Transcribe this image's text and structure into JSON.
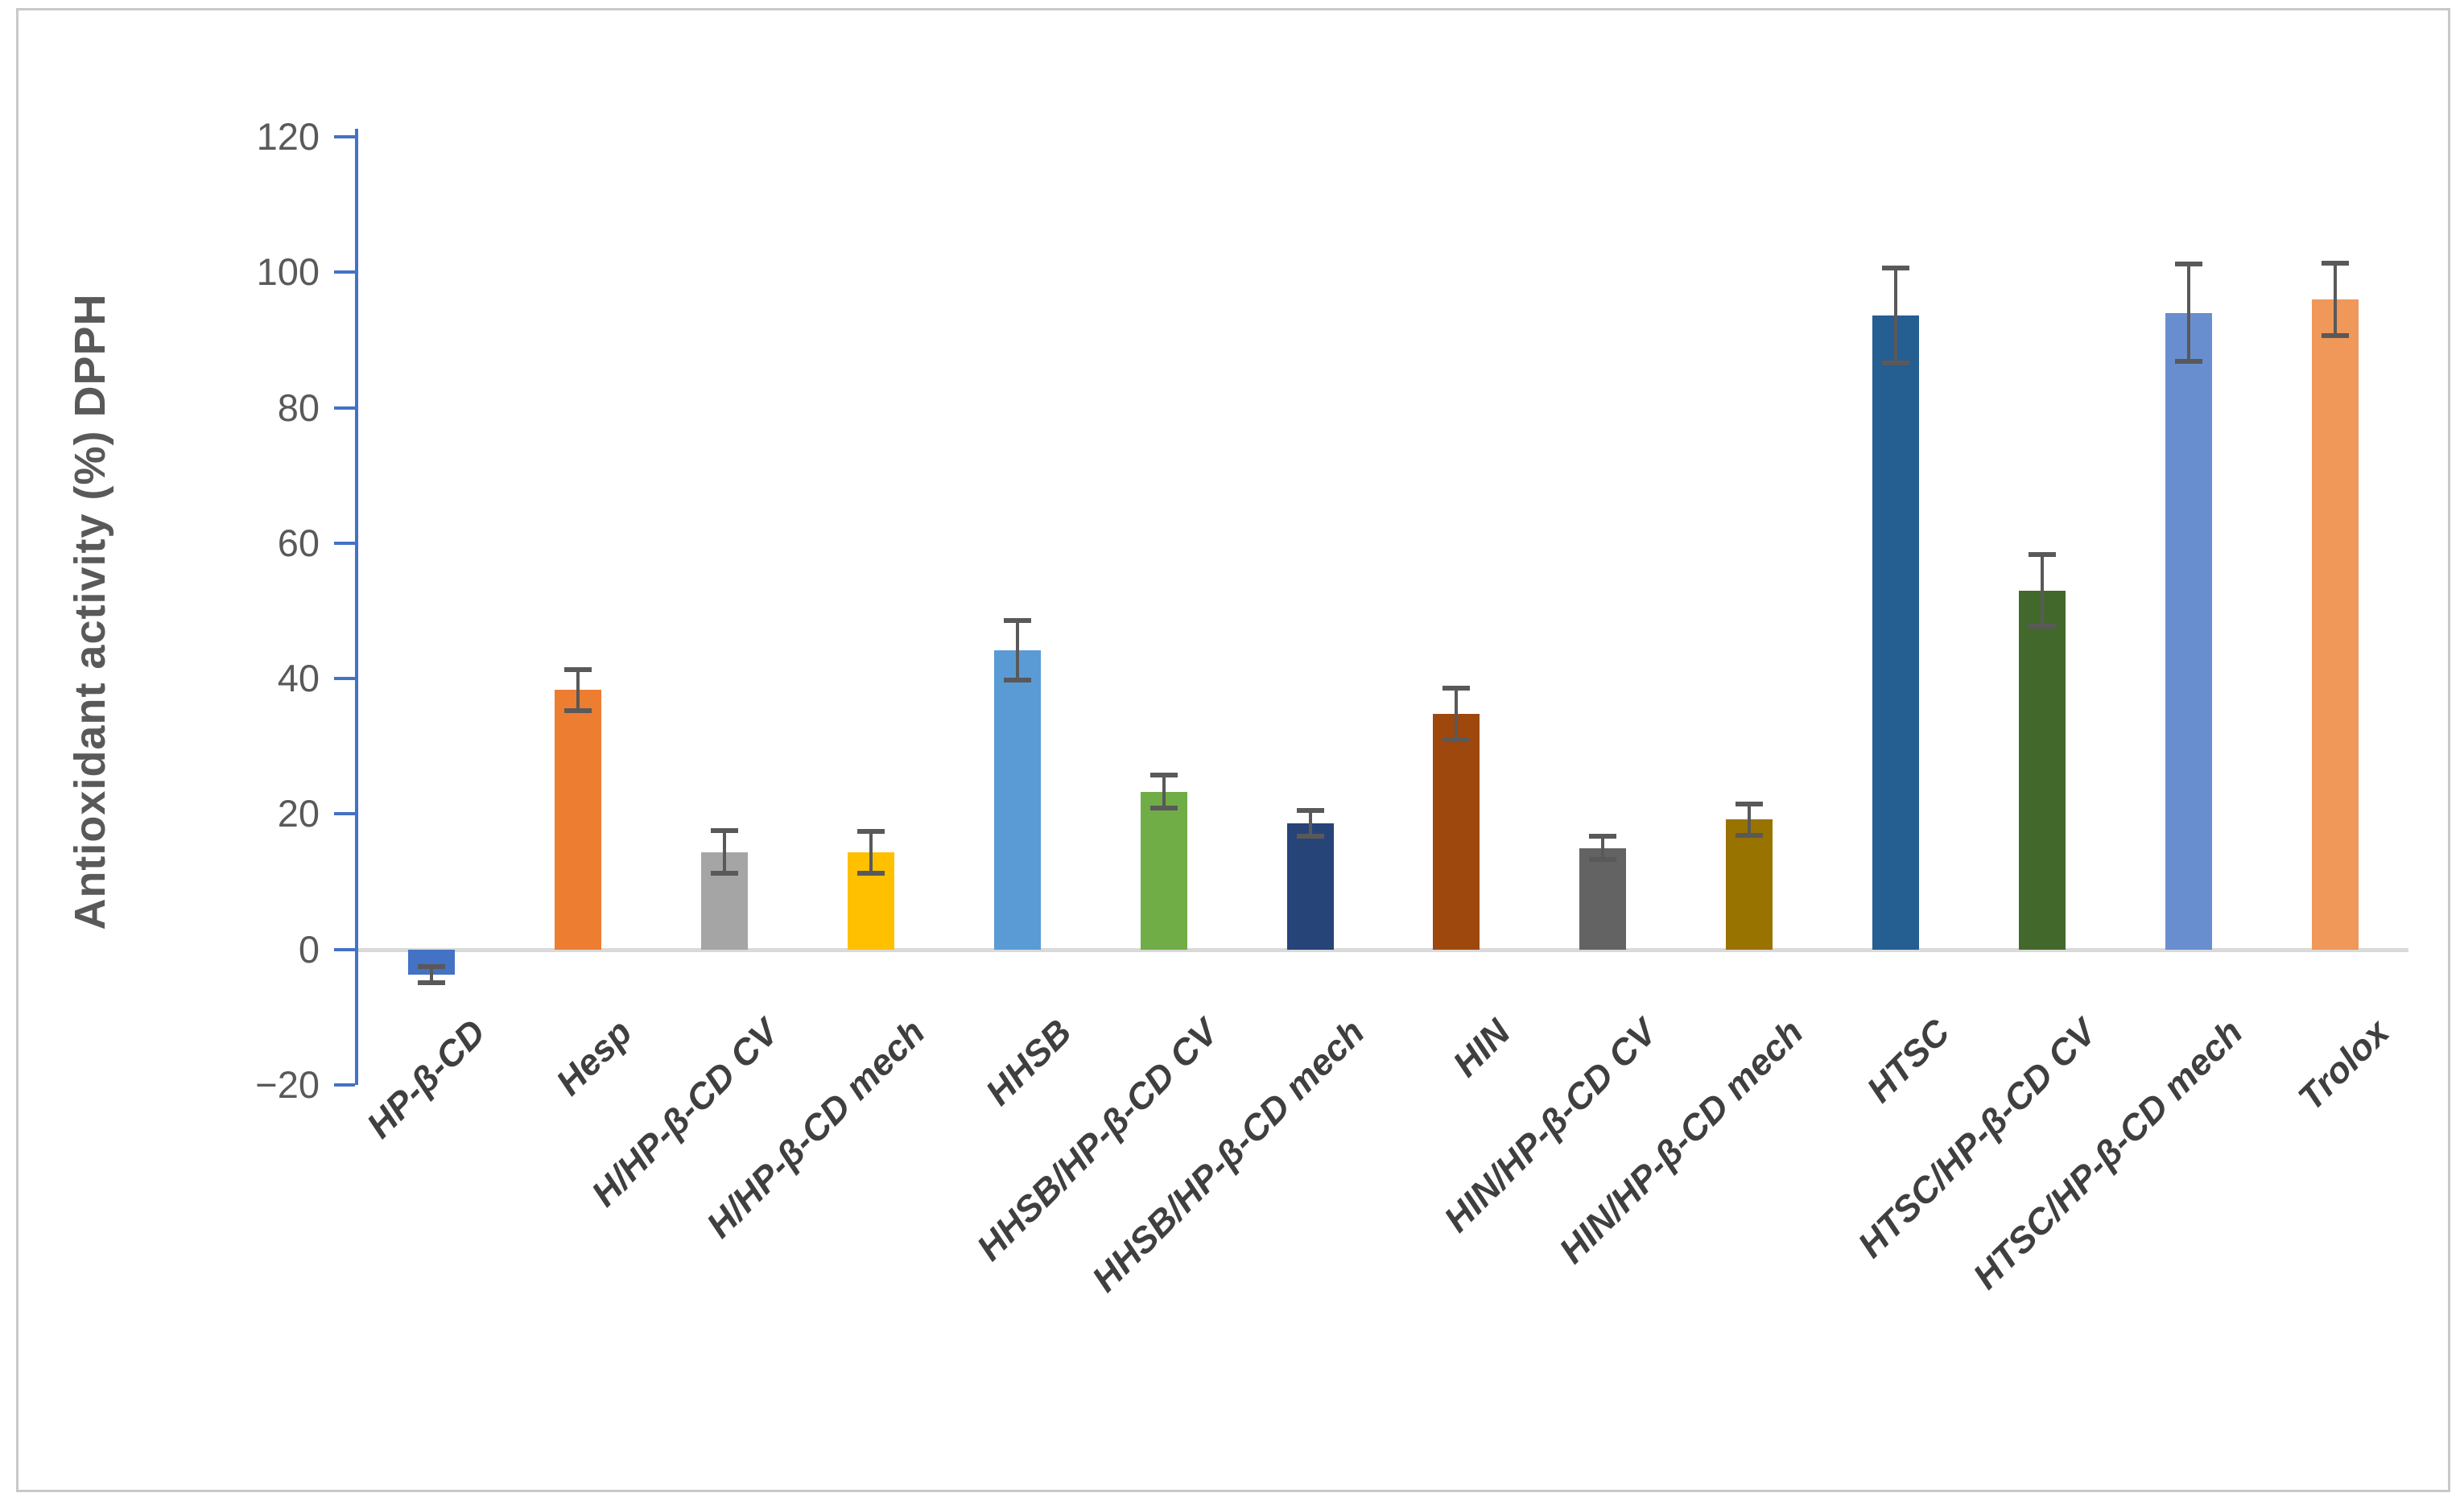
{
  "chart_data": {
    "type": "bar",
    "title": "",
    "ylabel": "Antioxidant activity (%) DPPH",
    "xlabel": "",
    "ylim": [
      -20,
      120
    ],
    "ytick_step": 20,
    "ytick_values": [
      120,
      100,
      80,
      60,
      40,
      20,
      0,
      -20
    ],
    "ytick_labels": [
      "120",
      "100",
      "80",
      "60",
      "40",
      "20",
      "0",
      "−20"
    ],
    "grid": "zero-baseline-only",
    "legend_position": "none",
    "categories": [
      "HP-β-CD",
      "Hesp",
      "H/HP-β-CD CV",
      "H/HP-β-CD mech",
      "HHSB",
      "HHSB/HP-β-CD CV",
      "HHSB/HP-β-CD mech",
      "HIN",
      "HIN/HP-β-CD CV",
      "HIN/HP-β-CD mech",
      "HTSC",
      "HTSC/HP-β-CD CV",
      "HTSC/HP-β-CD mech",
      "Trolox"
    ],
    "series": [
      {
        "name": "Antioxidant activity (%) DPPH",
        "values": [
          -3.7,
          38.3,
          14.4,
          14.3,
          44.2,
          23.3,
          18.6,
          34.8,
          15.0,
          19.2,
          93.6,
          53.0,
          94.0,
          96.0
        ],
        "error_bars": [
          1.2,
          3.0,
          3.2,
          3.1,
          4.4,
          2.4,
          1.9,
          3.8,
          1.7,
          2.3,
          7.0,
          5.3,
          7.2,
          5.3
        ],
        "bar_colors": [
          "#4472c4",
          "#ed7d31",
          "#a5a5a5",
          "#ffc000",
          "#5b9bd5",
          "#70ad47",
          "#264478",
          "#9e480e",
          "#636363",
          "#997300",
          "#255e91",
          "#43682b",
          "#698ed0",
          "#f0975a"
        ]
      }
    ]
  },
  "style": {
    "axis_color": "#4472c4",
    "zero_line_color": "#d9d9d9",
    "error_bar_color": "#595959",
    "y_tick_label_color": "#595959",
    "y_title_color": "#595959",
    "category_label_color": "#3f3f3f",
    "frame_border_color": "#c9c9c9",
    "background_color": "#ffffff"
  }
}
